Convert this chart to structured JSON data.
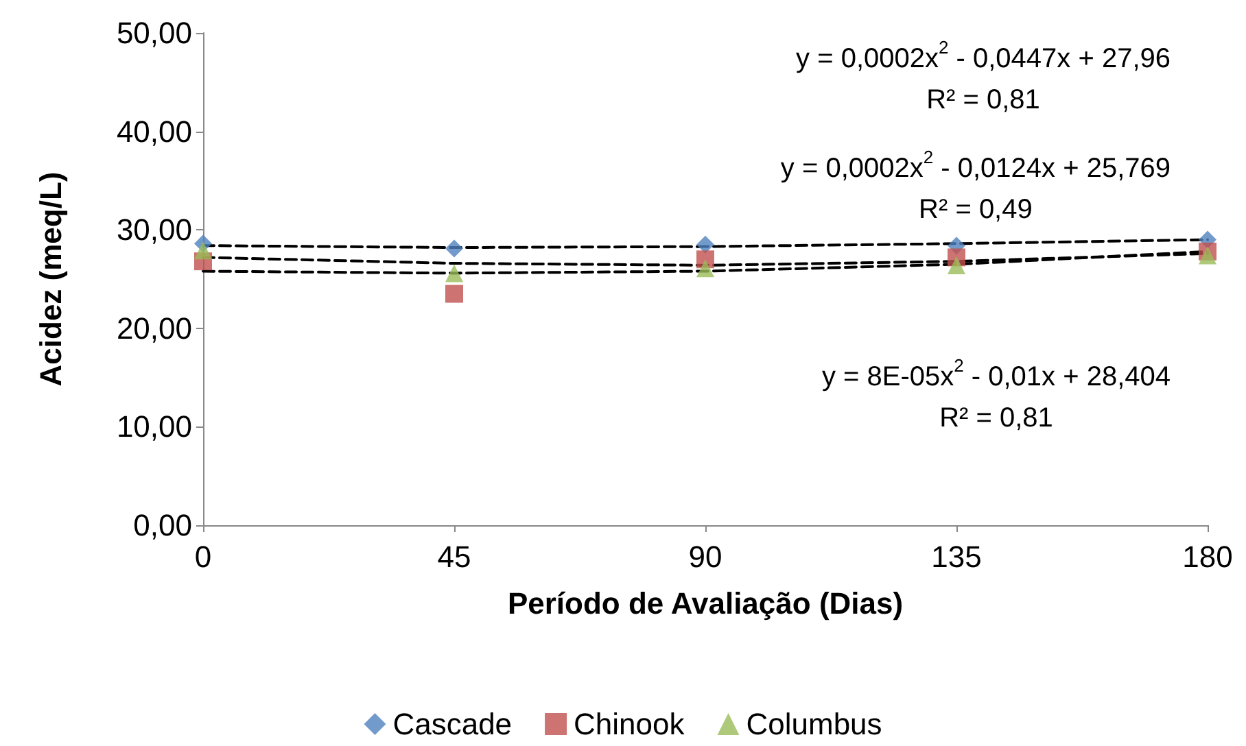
{
  "chart_data": {
    "type": "scatter",
    "xlabel": "Período de Avaliação (Dias)",
    "ylabel": "Acidez (meq/L)",
    "x": [
      0,
      45,
      90,
      135,
      180
    ],
    "series": [
      {
        "name": "Cascade",
        "color": "#4f81bd",
        "marker": "diamond",
        "values": [
          28.6,
          28.1,
          28.5,
          28.4,
          29.0
        ]
      },
      {
        "name": "Chinook",
        "color": "#c0504d",
        "marker": "square",
        "values": [
          26.8,
          23.5,
          27.0,
          27.2,
          27.8
        ]
      },
      {
        "name": "Columbus",
        "color": "#9bbb59",
        "marker": "triangle",
        "values": [
          27.9,
          25.6,
          26.1,
          26.4,
          27.4
        ]
      },
      {
        "type": "line",
        "color": "#000000",
        "line_style": "dashed",
        "marker": "none",
        "x": [
          0,
          45,
          90,
          135,
          180
        ],
        "values": [
          28.4,
          28.2,
          28.3,
          28.6,
          29.0
        ]
      },
      {
        "type": "line",
        "color": "#000000",
        "line_style": "dashed",
        "marker": "none",
        "x": [
          0,
          45,
          90,
          135,
          180
        ],
        "values": [
          25.8,
          25.6,
          25.8,
          26.5,
          27.8
        ]
      },
      {
        "type": "line",
        "color": "#000000",
        "line_style": "dashed",
        "marker": "none",
        "x": [
          0,
          45,
          90,
          135,
          180
        ],
        "values": [
          27.2,
          26.6,
          26.4,
          26.8,
          27.6
        ]
      }
    ],
    "xlim": [
      0,
      180
    ],
    "xticks": [
      0,
      45,
      90,
      135,
      180
    ],
    "ylim": [
      0,
      50
    ],
    "yticks": [
      {
        "value": 0,
        "label": "0,00"
      },
      {
        "value": 10,
        "label": "10,00"
      },
      {
        "value": 20,
        "label": "20,00"
      },
      {
        "value": 30,
        "label": "30,00"
      },
      {
        "value": 40,
        "label": "40,00"
      },
      {
        "value": 50,
        "label": "50,00"
      }
    ],
    "annotations": [
      "y = 0,0002x$^{2}$ - 0,0447x + 27,96\nR² = 0,81",
      "y = 0,0002x$^{2}$ - 0,0124x + 25,769\nR² = 0,49",
      "y = 8E-05x$^{2}$ - 0,01x + 28,404\nR² = 0,81"
    ],
    "grid": false,
    "legend": "bottom"
  }
}
